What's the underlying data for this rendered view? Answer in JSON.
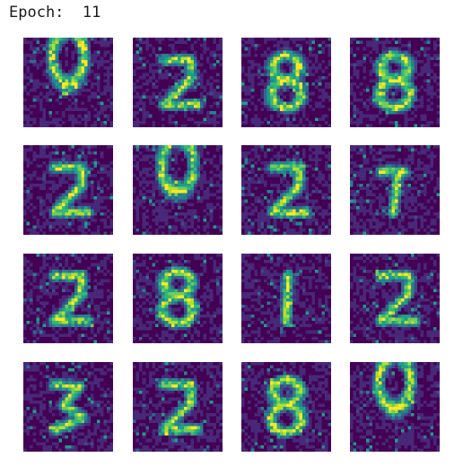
{
  "header": {
    "epoch_label": "Epoch:  11"
  },
  "colors": {
    "background": "#440154",
    "colormap": [
      "#440154",
      "#482878",
      "#3e4989",
      "#31688e",
      "#26828e",
      "#1f9e89",
      "#35b779",
      "#6ece58",
      "#b5de2b",
      "#fde725"
    ]
  },
  "samples": [
    {
      "digit": "0"
    },
    {
      "digit": "2"
    },
    {
      "digit": "8"
    },
    {
      "digit": "8"
    },
    {
      "digit": "2"
    },
    {
      "digit": "0"
    },
    {
      "digit": "2"
    },
    {
      "digit": "7"
    },
    {
      "digit": "2"
    },
    {
      "digit": "8"
    },
    {
      "digit": "1"
    },
    {
      "digit": "2"
    },
    {
      "digit": "3"
    },
    {
      "digit": "2"
    },
    {
      "digit": "8"
    },
    {
      "digit": "0"
    }
  ]
}
